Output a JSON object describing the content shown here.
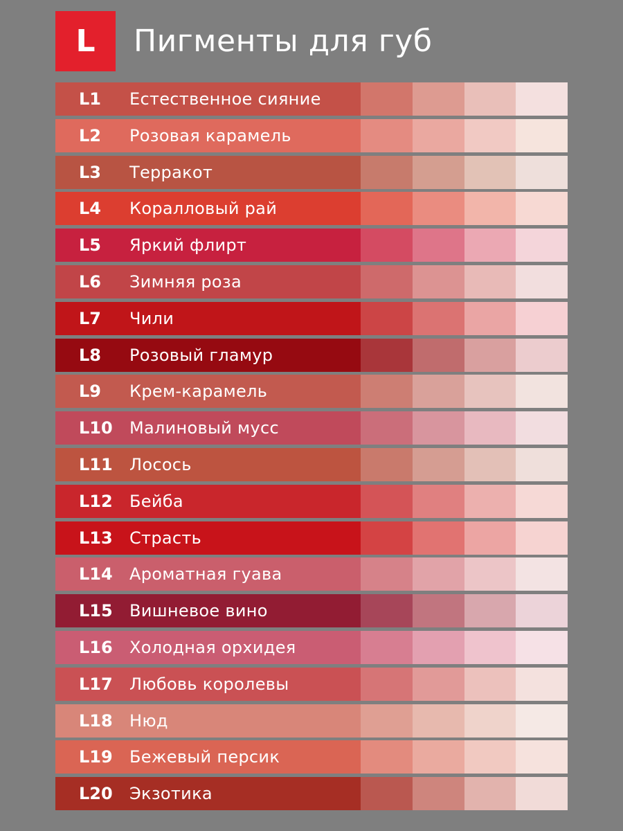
{
  "header": {
    "logo_letter": "L",
    "title": "Пигменты для губ",
    "logo_color": "#e3202c"
  },
  "pigments": [
    {
      "code": "L1",
      "name": "Естественное сияние",
      "colors": [
        "#c45148",
        "#d2766b",
        "#dd9b91",
        "#e9bfb9",
        "#f4e0df"
      ]
    },
    {
      "code": "L2",
      "name": "Розовая карамель",
      "colors": [
        "#df6a5d",
        "#e48b81",
        "#eaa8a0",
        "#f1c9c3",
        "#f6e4dd"
      ]
    },
    {
      "code": "L3",
      "name": "Терракот",
      "colors": [
        "#b85443",
        "#c77b6c",
        "#d49e90",
        "#e2c2b6",
        "#eedfdb"
      ]
    },
    {
      "code": "L4",
      "name": "Коралловый рай",
      "colors": [
        "#dc3e30",
        "#e36758",
        "#ea8c80",
        "#f2b5aa",
        "#f7d9d3"
      ]
    },
    {
      "code": "L5",
      "name": "Яркий флирт",
      "colors": [
        "#c7213f",
        "#d44b62",
        "#de7589",
        "#eba8b3",
        "#f4d5da"
      ]
    },
    {
      "code": "L6",
      "name": "Зимняя роза",
      "colors": [
        "#c14548",
        "#ce6a6b",
        "#dc9392",
        "#e8bab7",
        "#f2dede"
      ]
    },
    {
      "code": "L7",
      "name": "Чили",
      "colors": [
        "#c01519",
        "#cc4546",
        "#db7372",
        "#eaa5a4",
        "#f6d0d3"
      ]
    },
    {
      "code": "L8",
      "name": "Розовый гламур",
      "colors": [
        "#960a11",
        "#a9363a",
        "#c06c6d",
        "#d9a09f",
        "#ecccce"
      ]
    },
    {
      "code": "L9",
      "name": "Крем-карамель",
      "colors": [
        "#c25a4f",
        "#cd7e73",
        "#d9a19a",
        "#e7c3be",
        "#f2e3df"
      ]
    },
    {
      "code": "L10",
      "name": "Малиновый мусс",
      "colors": [
        "#c04a5b",
        "#cb6e7a",
        "#d8959e",
        "#e8b9c0",
        "#f2dde0"
      ]
    },
    {
      "code": "L11",
      "name": "Лосось",
      "colors": [
        "#bd5440",
        "#c97a6c",
        "#d59d92",
        "#e3c0b7",
        "#efdfdb"
      ]
    },
    {
      "code": "L12",
      "name": "Бейба",
      "colors": [
        "#c9262c",
        "#d45457",
        "#e08080",
        "#ecb0ae",
        "#f6d9d6"
      ]
    },
    {
      "code": "L13",
      "name": "Страсть",
      "colors": [
        "#c8131a",
        "#d44344",
        "#e17371",
        "#eca5a3",
        "#f6d3d1"
      ]
    },
    {
      "code": "L14",
      "name": "Ароматная гуава",
      "colors": [
        "#ca5f6c",
        "#d68289",
        "#e1a3a8",
        "#ecc5c7",
        "#f3e3e3"
      ]
    },
    {
      "code": "L15",
      "name": "Вишневое вино",
      "colors": [
        "#921c33",
        "#a74659",
        "#c1757f",
        "#d8a7ad",
        "#ecd3d9"
      ]
    },
    {
      "code": "L16",
      "name": "Холодная орхидея",
      "colors": [
        "#ca5d73",
        "#d77e91",
        "#e3a0b0",
        "#efc3cd",
        "#f6e1e6"
      ]
    },
    {
      "code": "L17",
      "name": "Любовь королевы",
      "colors": [
        "#ca5154",
        "#d67576",
        "#e19a98",
        "#ecc1bc",
        "#f4e1de"
      ]
    },
    {
      "code": "L18",
      "name": "Нюд",
      "colors": [
        "#d88679",
        "#df9f93",
        "#e7b9ae",
        "#efd3cb",
        "#f5e9e5"
      ]
    },
    {
      "code": "L19",
      "name": "Бежевый персик",
      "colors": [
        "#da6554",
        "#e38b7e",
        "#eaaa9f",
        "#f1c9c1",
        "#f6e2dd"
      ]
    },
    {
      "code": "L20",
      "name": "Экзотика",
      "colors": [
        "#a62e24",
        "#ba5850",
        "#ce857d",
        "#e2b3ad",
        "#f1dbd8"
      ]
    }
  ]
}
